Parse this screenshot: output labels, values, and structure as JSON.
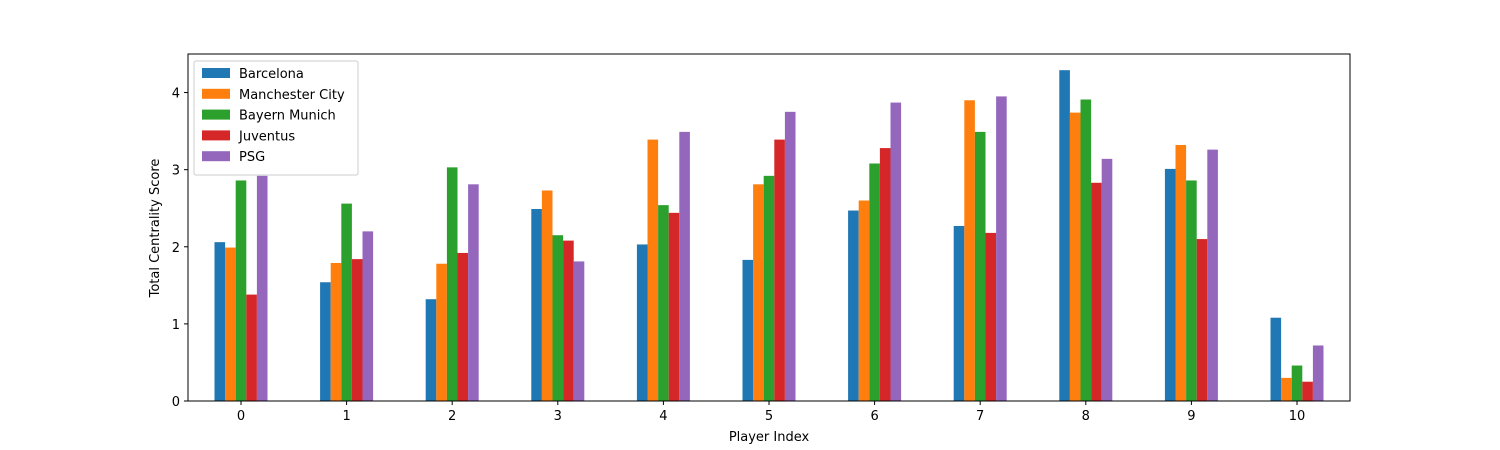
{
  "chart_data": {
    "type": "bar",
    "title": "",
    "xlabel": "Player Index",
    "ylabel": "Total Centrality Score",
    "categories": [
      "0",
      "1",
      "2",
      "3",
      "4",
      "5",
      "6",
      "7",
      "8",
      "9",
      "10"
    ],
    "ylim": [
      0,
      4.5
    ],
    "yticks": [
      "0",
      "1",
      "2",
      "3",
      "4"
    ],
    "grid": false,
    "legend_position": "upper-left",
    "series": [
      {
        "name": "Barcelona",
        "color": "#1f77b4",
        "values": [
          2.06,
          1.54,
          1.32,
          2.49,
          2.03,
          1.83,
          2.47,
          2.27,
          4.29,
          3.01,
          1.08
        ]
      },
      {
        "name": "Manchester City",
        "color": "#ff7f0e",
        "values": [
          1.99,
          1.79,
          1.78,
          2.73,
          3.39,
          2.81,
          2.6,
          3.9,
          3.74,
          3.32,
          0.3
        ]
      },
      {
        "name": "Bayern Munich",
        "color": "#2ca02c",
        "values": [
          2.86,
          2.56,
          3.03,
          2.15,
          2.54,
          2.92,
          3.08,
          3.49,
          3.91,
          2.86,
          0.46
        ]
      },
      {
        "name": "Juventus",
        "color": "#d62728",
        "values": [
          1.38,
          1.84,
          1.92,
          2.08,
          2.44,
          3.39,
          3.28,
          2.18,
          2.83,
          2.1,
          0.25
        ]
      },
      {
        "name": "PSG",
        "color": "#9467bd",
        "values": [
          2.92,
          2.2,
          2.81,
          1.81,
          3.49,
          3.75,
          3.87,
          3.95,
          3.14,
          3.26,
          0.72
        ]
      }
    ]
  }
}
